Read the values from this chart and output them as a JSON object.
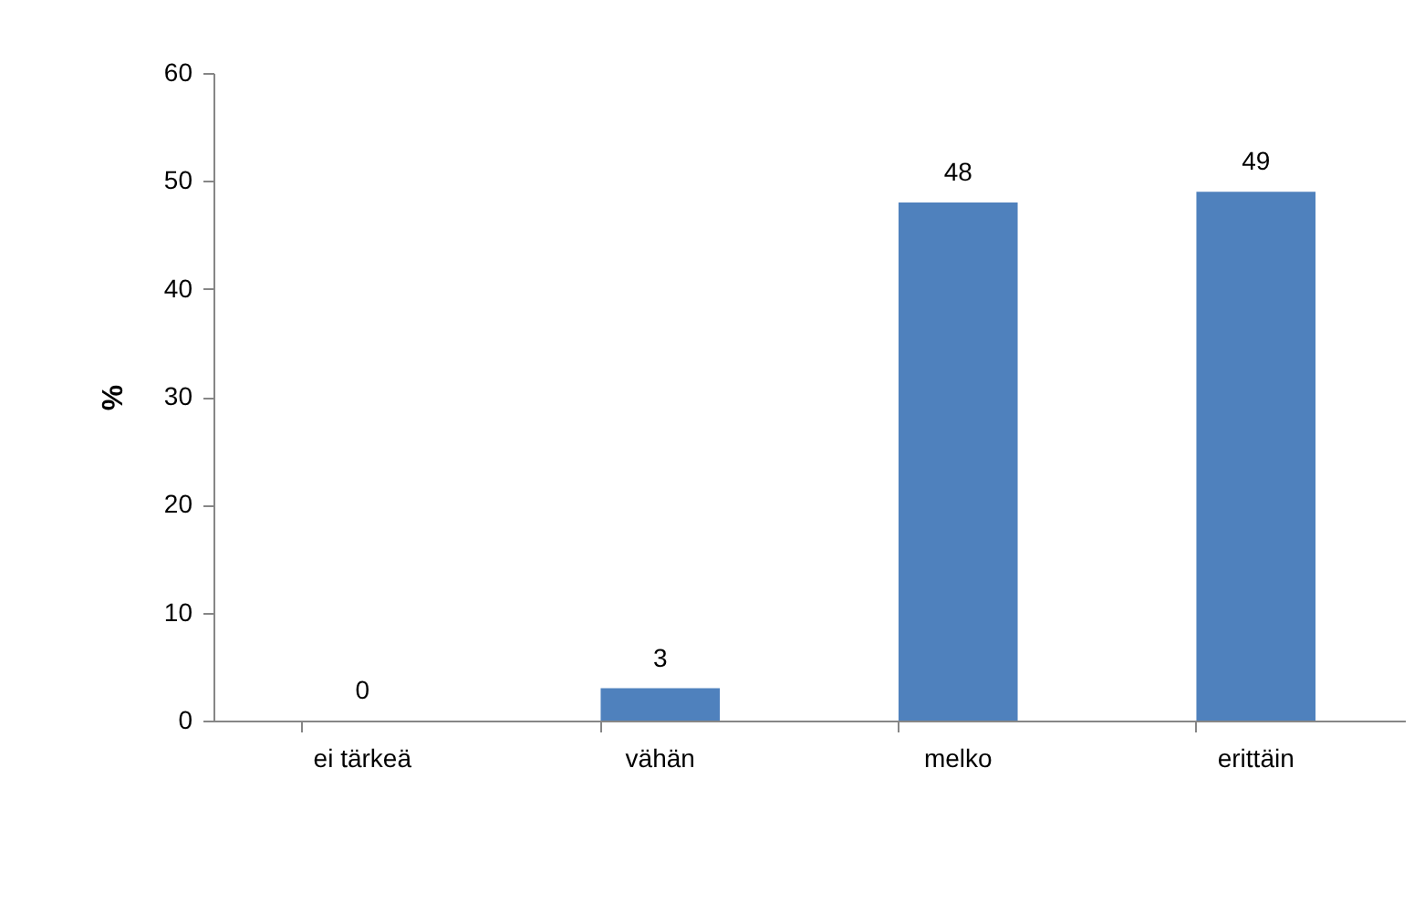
{
  "chart_data": {
    "type": "bar",
    "ylabel": "%",
    "categories": [
      "ei tärkeä",
      "vähän",
      "melko",
      "erittäin"
    ],
    "values": [
      0,
      3,
      48,
      49
    ],
    "color": "#4f81bd",
    "ylim": [
      0,
      60
    ],
    "yticks": [
      0,
      10,
      20,
      30,
      40,
      50,
      60
    ],
    "grid": false,
    "data_labels": true
  }
}
